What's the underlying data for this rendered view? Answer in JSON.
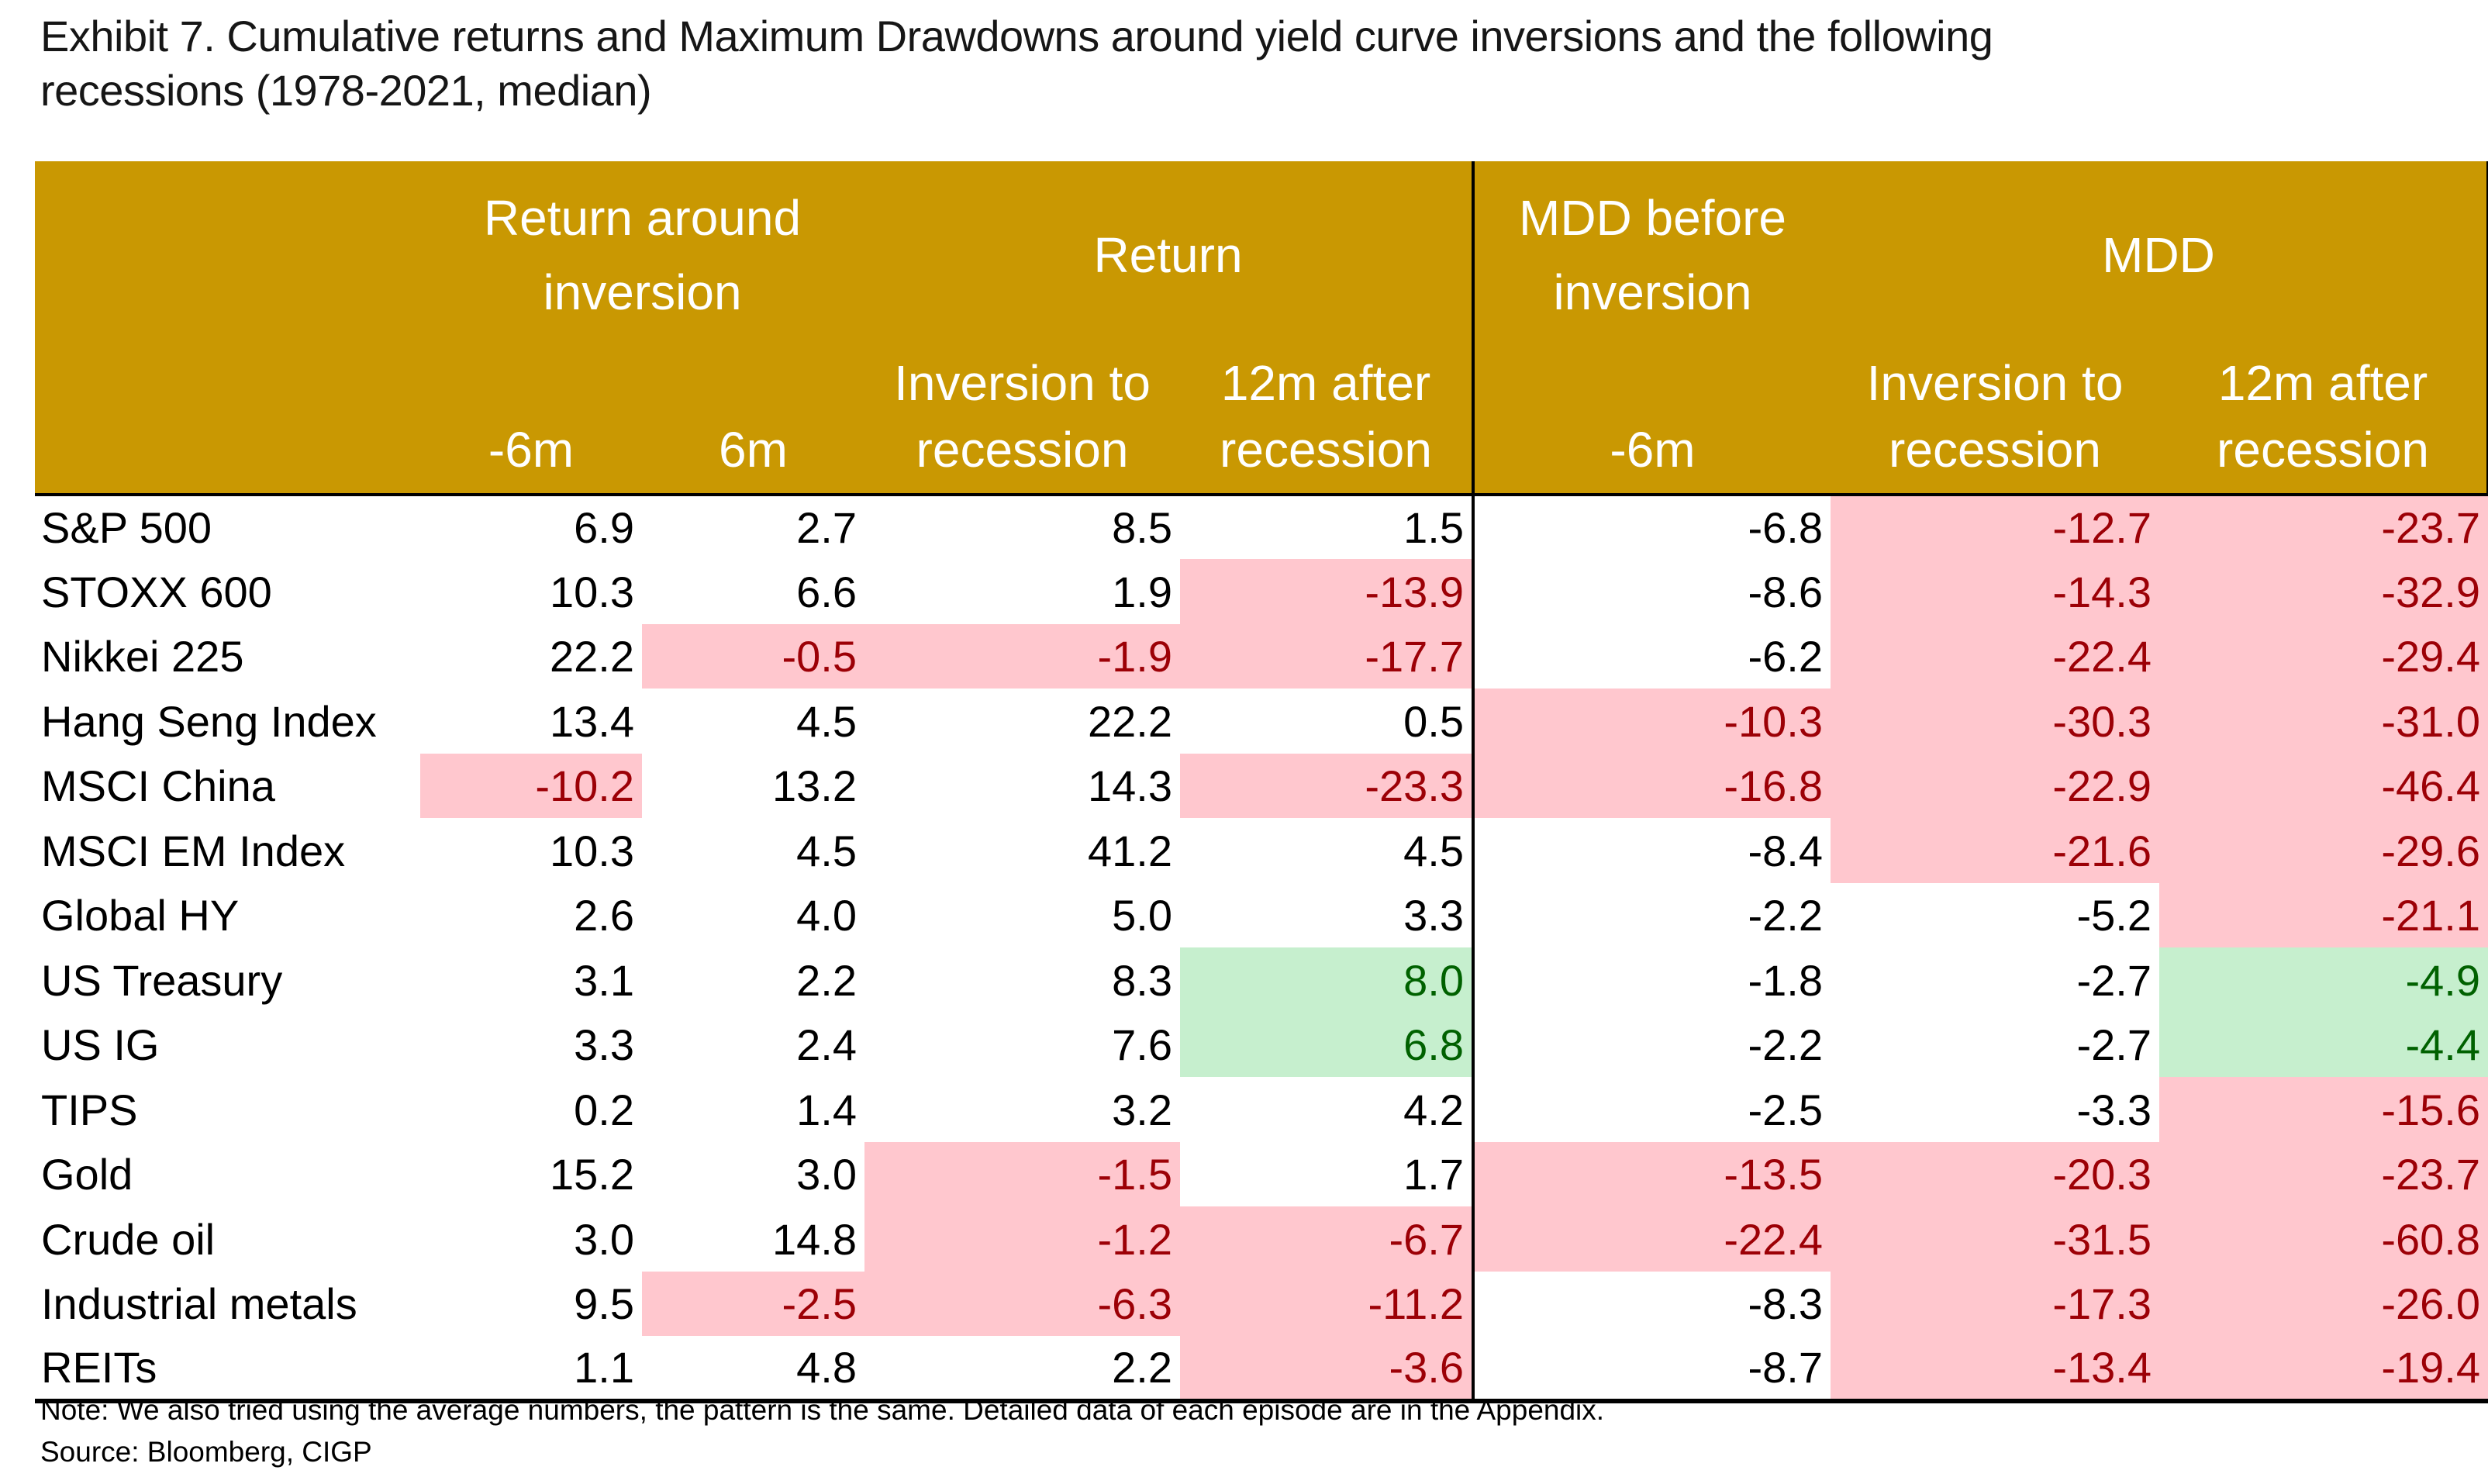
{
  "title": "Exhibit 7. Cumulative returns and Maximum Drawdowns around yield curve inversions and the following recessions (1978-2021, median)",
  "notes": {
    "note": "Note: We also tried using the average numbers, the pattern is the same. Detailed data of each episode are in the Appendix.",
    "source": "Source: Bloomberg, CIGP"
  },
  "colors": {
    "header_bg": "#C99802",
    "header_text": "#FFFFFF",
    "bad_bg": "#FFC7CE",
    "bad_text": "#9C0006",
    "good_bg": "#C6EFCE",
    "good_text": "#006100"
  },
  "chart_data": {
    "type": "table",
    "title": "Exhibit 7. Cumulative returns and Maximum Drawdowns around yield curve inversions and the following recessions (1978-2021, median)",
    "column_groups": [
      "Return around inversion",
      "Return",
      "MDD before inversion",
      "MDD"
    ],
    "columns": [
      "-6m",
      "6m",
      "Inversion to recession",
      "12m after recession",
      "-6m",
      "Inversion to recession",
      "12m after recession"
    ],
    "legend": "bad = pink highlight (negative outcome), good = green highlight (favorable outcome)",
    "rows": [
      {
        "name": "S&P 500",
        "values": [
          6.9,
          2.7,
          8.5,
          1.5,
          -6.8,
          -12.7,
          -23.7
        ],
        "highlights": [
          "none",
          "none",
          "none",
          "none",
          "none",
          "bad",
          "bad"
        ]
      },
      {
        "name": "STOXX 600",
        "values": [
          10.3,
          6.6,
          1.9,
          -13.9,
          -8.6,
          -14.3,
          -32.9
        ],
        "highlights": [
          "none",
          "none",
          "none",
          "bad",
          "none",
          "bad",
          "bad"
        ]
      },
      {
        "name": "Nikkei 225",
        "values": [
          22.2,
          -0.5,
          -1.9,
          -17.7,
          -6.2,
          -22.4,
          -29.4
        ],
        "highlights": [
          "none",
          "bad",
          "bad",
          "bad",
          "none",
          "bad",
          "bad"
        ]
      },
      {
        "name": "Hang Seng Index",
        "values": [
          13.4,
          4.5,
          22.2,
          0.5,
          -10.3,
          -30.3,
          -31.0
        ],
        "highlights": [
          "none",
          "none",
          "none",
          "none",
          "bad",
          "bad",
          "bad"
        ]
      },
      {
        "name": "MSCI China",
        "values": [
          -10.2,
          13.2,
          14.3,
          -23.3,
          -16.8,
          -22.9,
          -46.4
        ],
        "highlights": [
          "bad",
          "none",
          "none",
          "bad",
          "bad",
          "bad",
          "bad"
        ]
      },
      {
        "name": "MSCI EM Index",
        "values": [
          10.3,
          4.5,
          41.2,
          4.5,
          -8.4,
          -21.6,
          -29.6
        ],
        "highlights": [
          "none",
          "none",
          "none",
          "none",
          "none",
          "bad",
          "bad"
        ]
      },
      {
        "name": "Global HY",
        "values": [
          2.6,
          4.0,
          5.0,
          3.3,
          -2.2,
          -5.2,
          -21.1
        ],
        "highlights": [
          "none",
          "none",
          "none",
          "none",
          "none",
          "none",
          "bad"
        ]
      },
      {
        "name": "US Treasury",
        "values": [
          3.1,
          2.2,
          8.3,
          8.0,
          -1.8,
          -2.7,
          -4.9
        ],
        "highlights": [
          "none",
          "none",
          "none",
          "good",
          "none",
          "none",
          "good"
        ]
      },
      {
        "name": "US IG",
        "values": [
          3.3,
          2.4,
          7.6,
          6.8,
          -2.2,
          -2.7,
          -4.4
        ],
        "highlights": [
          "none",
          "none",
          "none",
          "good",
          "none",
          "none",
          "good"
        ]
      },
      {
        "name": "TIPS",
        "values": [
          0.2,
          1.4,
          3.2,
          4.2,
          -2.5,
          -3.3,
          -15.6
        ],
        "highlights": [
          "none",
          "none",
          "none",
          "none",
          "none",
          "none",
          "bad"
        ]
      },
      {
        "name": "Gold",
        "values": [
          15.2,
          3.0,
          -1.5,
          1.7,
          -13.5,
          -20.3,
          -23.7
        ],
        "highlights": [
          "none",
          "none",
          "bad",
          "none",
          "bad",
          "bad",
          "bad"
        ]
      },
      {
        "name": "Crude oil",
        "values": [
          3.0,
          14.8,
          -1.2,
          -6.7,
          -22.4,
          -31.5,
          -60.8
        ],
        "highlights": [
          "none",
          "none",
          "bad",
          "bad",
          "bad",
          "bad",
          "bad"
        ]
      },
      {
        "name": "Industrial metals",
        "values": [
          9.5,
          -2.5,
          -6.3,
          -11.2,
          -8.3,
          -17.3,
          -26.0
        ],
        "highlights": [
          "none",
          "bad",
          "bad",
          "bad",
          "none",
          "bad",
          "bad"
        ]
      },
      {
        "name": "REITs",
        "values": [
          1.1,
          4.8,
          2.2,
          -3.6,
          -8.7,
          -13.4,
          -19.4
        ],
        "highlights": [
          "none",
          "none",
          "none",
          "bad",
          "none",
          "bad",
          "bad"
        ]
      }
    ]
  }
}
